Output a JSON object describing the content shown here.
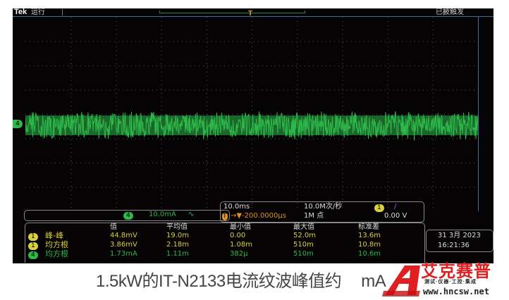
{
  "header": {
    "brand": "Tek",
    "run_status": "运行",
    "trigger_status": "已被触发"
  },
  "channel_marker": "4",
  "trigger_marker": "T",
  "ch4_scale": {
    "badge": "4",
    "value": "10.0mA",
    "coupling_icon": "∿"
  },
  "timebase": {
    "scale": "10.0ms",
    "trigger_pos": "→▼-200.0000µs",
    "sample_rate": "10.0M次/秒",
    "record_length": "1M 点",
    "trig_source": "1",
    "trig_slope": "/",
    "trig_level": "0.00 V"
  },
  "measurements": {
    "headers": [
      "值",
      "平均值",
      "最小值",
      "最大值",
      "标准差"
    ],
    "rows": [
      {
        "ch": "1",
        "label": "峰-峰",
        "values": [
          "44.8mV",
          "19.0m",
          "0.00",
          "52.0m",
          "13.6m"
        ],
        "color": "#d8d040"
      },
      {
        "ch": "1",
        "label": "均方根",
        "values": [
          "3.86mV",
          "2.18m",
          "1.08m",
          "510m",
          "10.8m"
        ],
        "color": "#d8d040"
      },
      {
        "ch": "4",
        "label": "均方根",
        "values": [
          "1.73mA",
          "1.11m",
          "382µ",
          "510m",
          "10.6m"
        ],
        "color": "#2db84a"
      }
    ]
  },
  "datetime": {
    "date": "31 3月 2023",
    "time": "16:21:36"
  },
  "caption": {
    "text": "1.5kW的IT-N2133电流纹波峰值约",
    "tail": "mA"
  },
  "logo": {
    "cn": "艾克赛普",
    "en": "ACCEXP",
    "sub": "测试·仪器·工控·集成",
    "url": "www.hncsw.net"
  },
  "colors": {
    "ch1": "#d8d040",
    "ch4": "#2db84a",
    "trigger": "#e09020",
    "grid": "#3a6ea8"
  }
}
